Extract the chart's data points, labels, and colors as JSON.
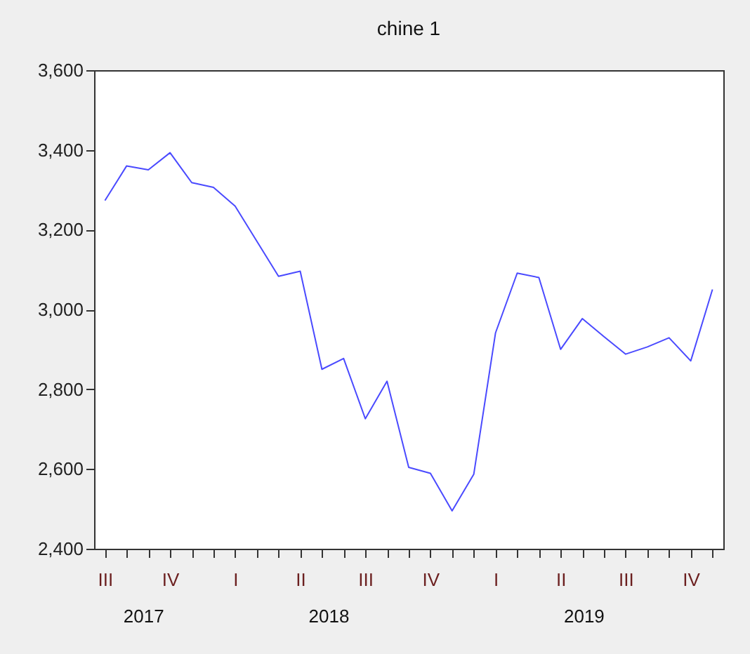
{
  "chart_data": {
    "type": "line",
    "title": "chine 1",
    "categories": [
      "III",
      null,
      null,
      "IV",
      null,
      null,
      "I",
      null,
      null,
      "II",
      null,
      null,
      "III",
      null,
      null,
      "IV",
      null,
      null,
      "I",
      null,
      null,
      "II",
      null,
      null,
      "III",
      null,
      null,
      "IV",
      null
    ],
    "series": [
      {
        "color": "#4a4aff",
        "values": [
          3273,
          3360,
          3350,
          3393,
          3318,
          3306,
          3259,
          3171,
          3083,
          3096,
          2850,
          2877,
          2726,
          2820,
          2604,
          2589,
          2495,
          2587,
          2941,
          3091,
          3080,
          2900,
          2977,
          2932,
          2888,
          2906,
          2929,
          2871,
          3050
        ]
      }
    ],
    "x2lim": [
      "2017-06-14",
      "2019-12-01"
    ],
    "x2ticks": [
      {
        "value": "2017-08-23",
        "label": "2017"
      },
      {
        "value": "2018-05-15",
        "label": "2018"
      },
      {
        "value": "2019-05-15",
        "label": "2019"
      }
    ],
    "ylim": [
      2400,
      3600
    ],
    "yticks": [
      {
        "value": 2400,
        "label": "2,400"
      },
      {
        "value": 2600,
        "label": "2,600"
      },
      {
        "value": 2800,
        "label": "2,800"
      },
      {
        "value": 3000,
        "label": "3,000"
      },
      {
        "value": 3200,
        "label": "3,200"
      },
      {
        "value": 3400,
        "label": "3,400"
      },
      {
        "value": 3600,
        "label": "3,600"
      }
    ],
    "grid": false,
    "marker": "none",
    "line_style": "solid"
  }
}
